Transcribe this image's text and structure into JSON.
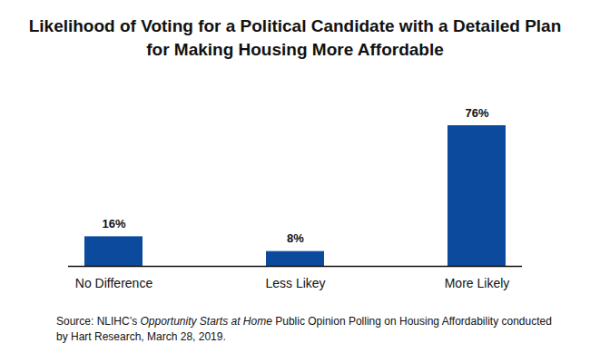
{
  "chart_data": {
    "type": "bar",
    "title": "Likelihood of Voting for a Political Candidate with a Detailed Plan for Making Housing More Affordable",
    "categories": [
      "No Difference",
      "Less Likey",
      "More Likely"
    ],
    "values": [
      16,
      8,
      76
    ],
    "value_labels": [
      "16%",
      "8%",
      "76%"
    ],
    "color": "#0b4a9c",
    "data_labels": true,
    "tick_labels": "x",
    "source": [
      "Source: NLIHC’s ",
      "Opportunity Starts at Home",
      " Public Opinion Polling on Housing Affordability conducted by Hart Research, March 28, 2019."
    ]
  }
}
